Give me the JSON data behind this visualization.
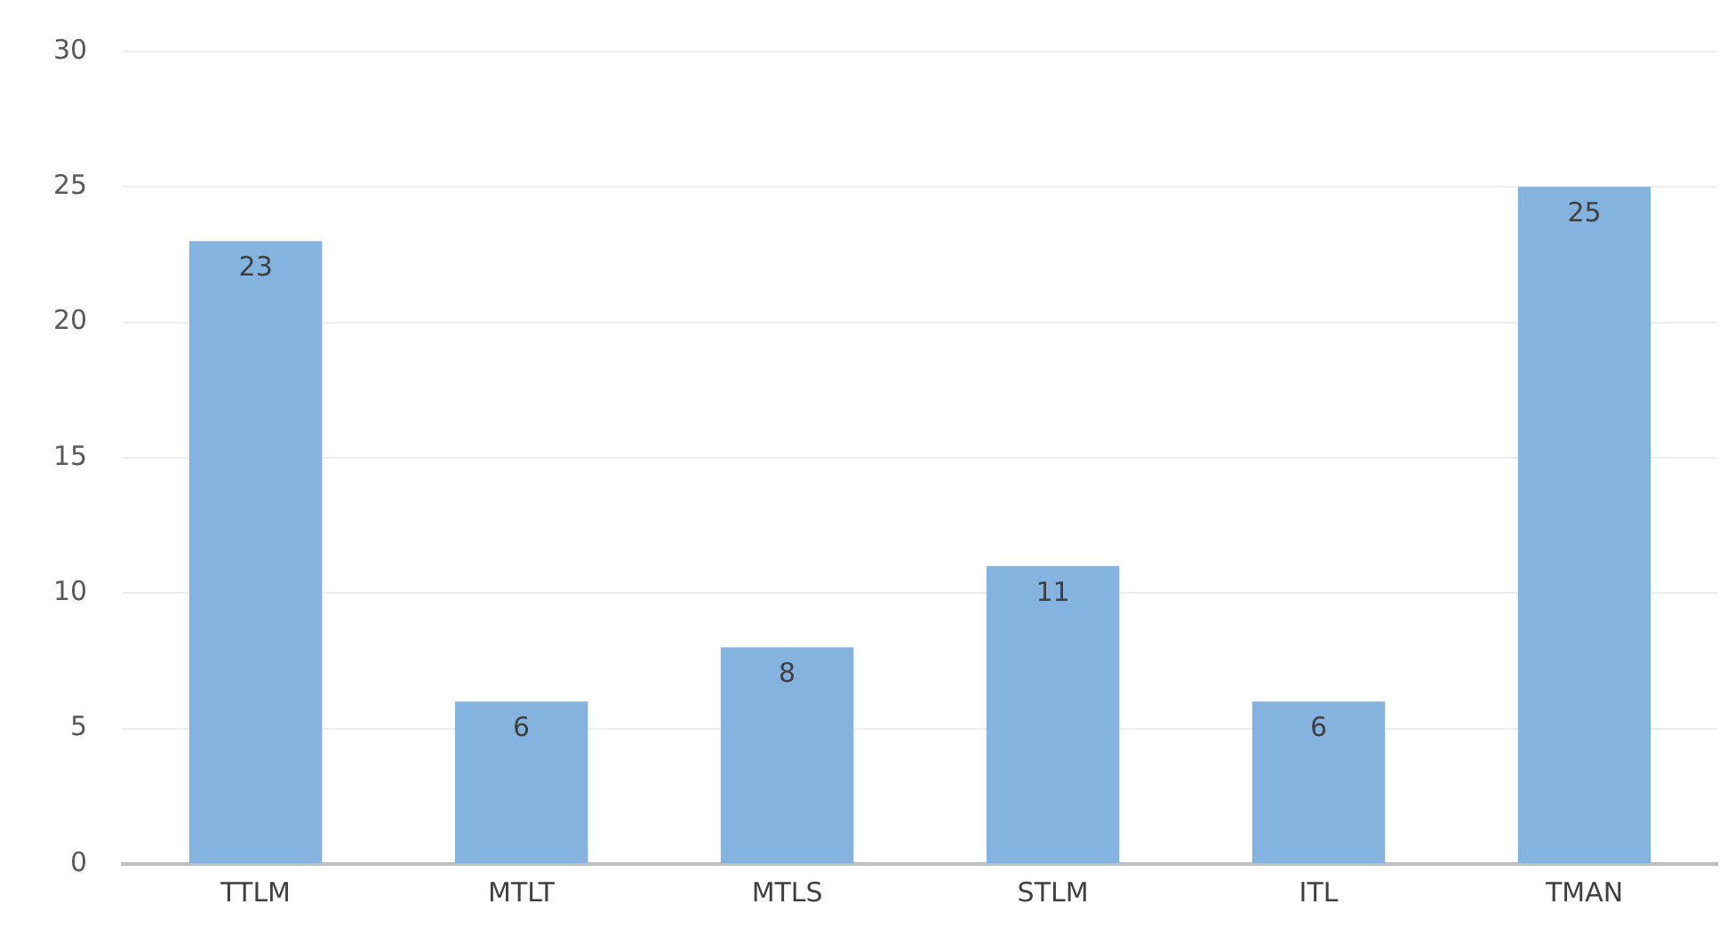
{
  "chart_data": {
    "type": "bar",
    "categories": [
      "TTLM",
      "MTLT",
      "MTLS",
      "STLM",
      "ITL",
      "TMAN"
    ],
    "values": [
      23,
      6,
      8,
      11,
      6,
      25
    ],
    "color": "#85b3e0",
    "ylim": [
      0,
      30
    ],
    "yticks": [
      0,
      5,
      10,
      15,
      20,
      25,
      30
    ],
    "grid": "y",
    "data_labels": true
  }
}
